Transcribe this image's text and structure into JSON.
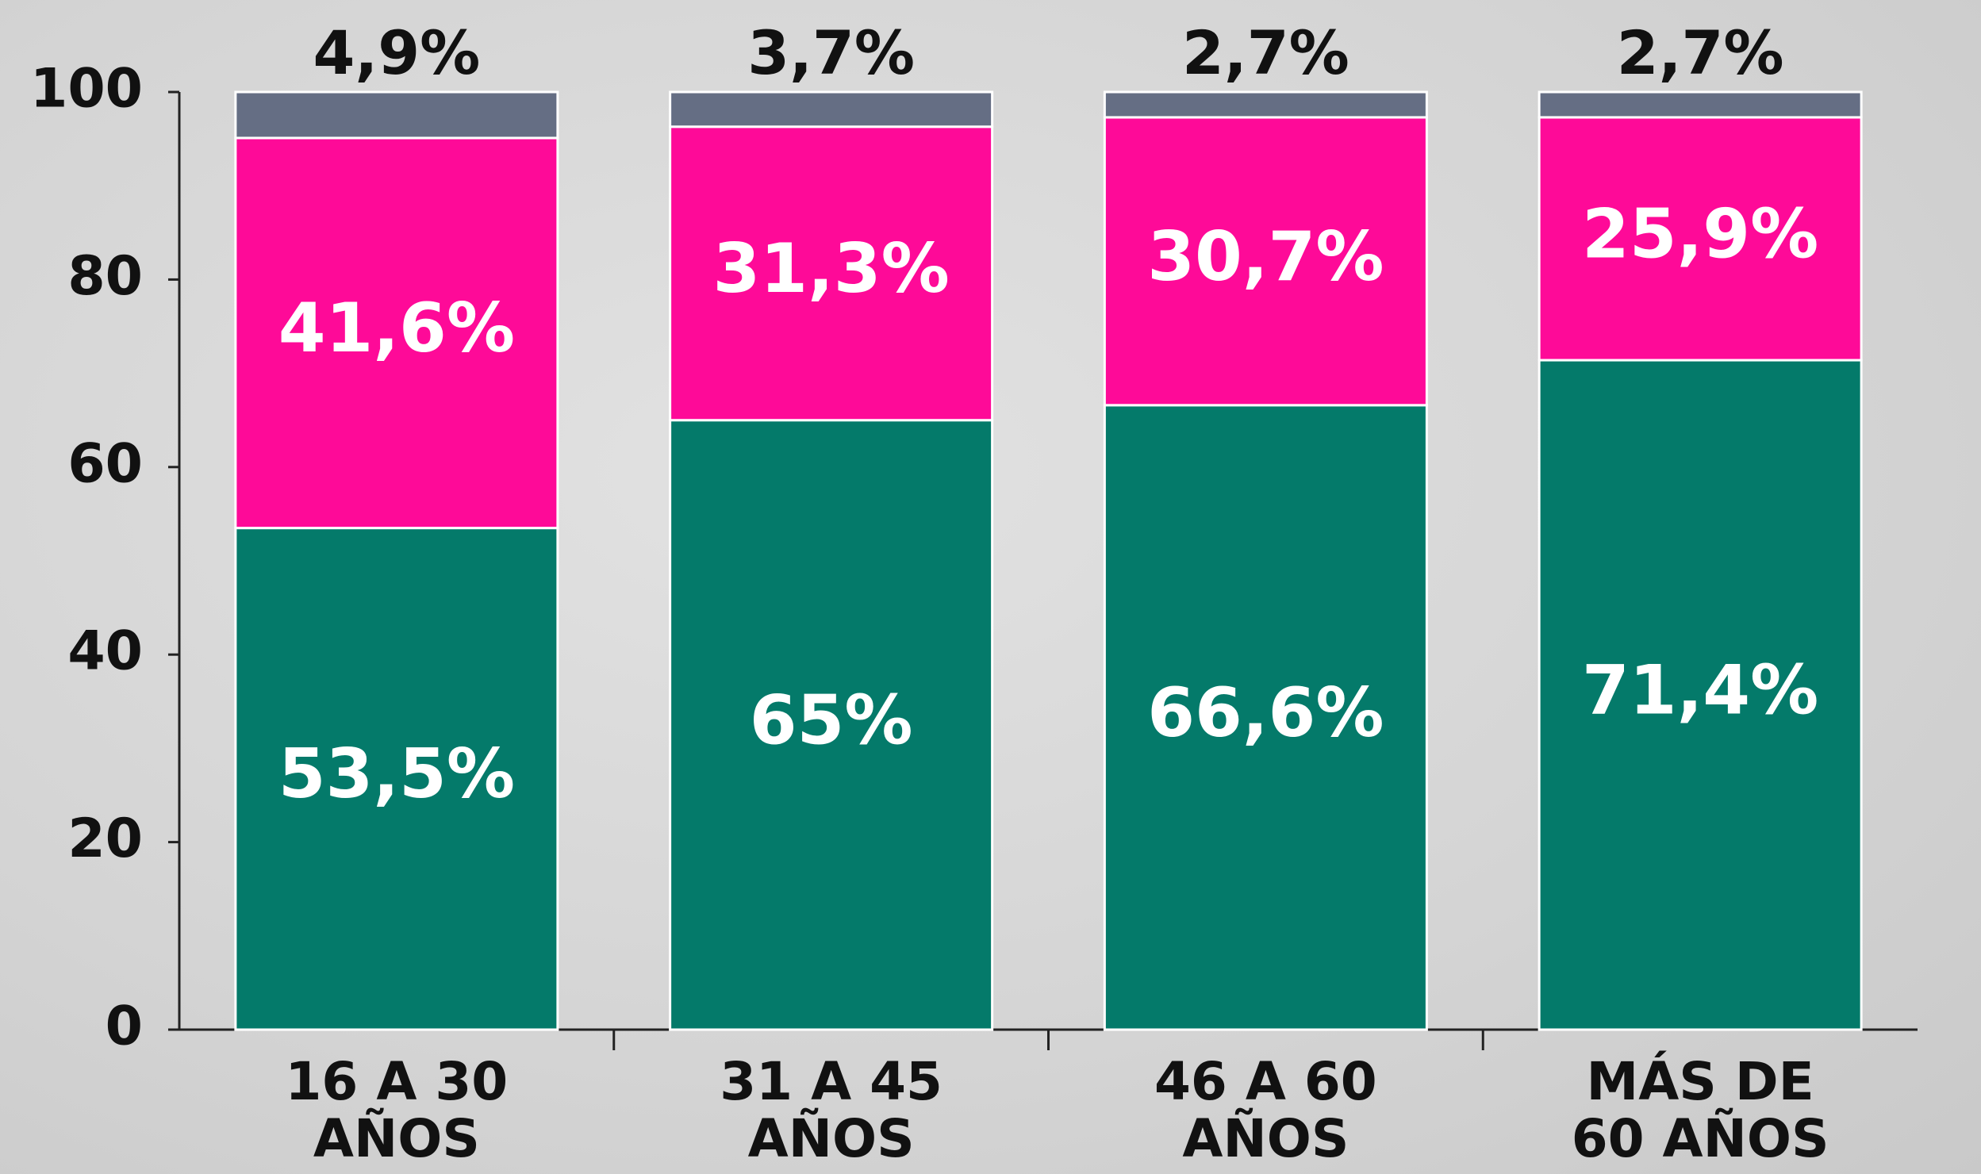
{
  "chart_data": {
    "type": "stacked_bar",
    "categories": [
      "16 A 30 AÑOS",
      "31 A 45 AÑOS",
      "46 A 60 AÑOS",
      "MÁS DE 60 AÑOS"
    ],
    "series": [
      {
        "color": "#047a6a",
        "values": [
          53.5,
          65,
          66.6,
          71.4
        ],
        "value_labels": [
          "53,5%",
          "65%",
          "66,6%",
          "71,4%"
        ]
      },
      {
        "color": "#fe0a98",
        "values": [
          41.6,
          31.3,
          30.7,
          25.9
        ],
        "value_labels": [
          "41,6%",
          "31,3%",
          "30,7%",
          "25,9%"
        ]
      },
      {
        "color": "#656e84",
        "values": [
          4.9,
          3.7,
          2.7,
          2.7
        ],
        "value_labels": [
          "4,9%",
          "3,7%",
          "2,7%",
          "2,7%"
        ]
      }
    ],
    "ylim": [
      0,
      100
    ],
    "yticks": [
      0,
      20,
      40,
      60,
      80,
      100
    ]
  }
}
